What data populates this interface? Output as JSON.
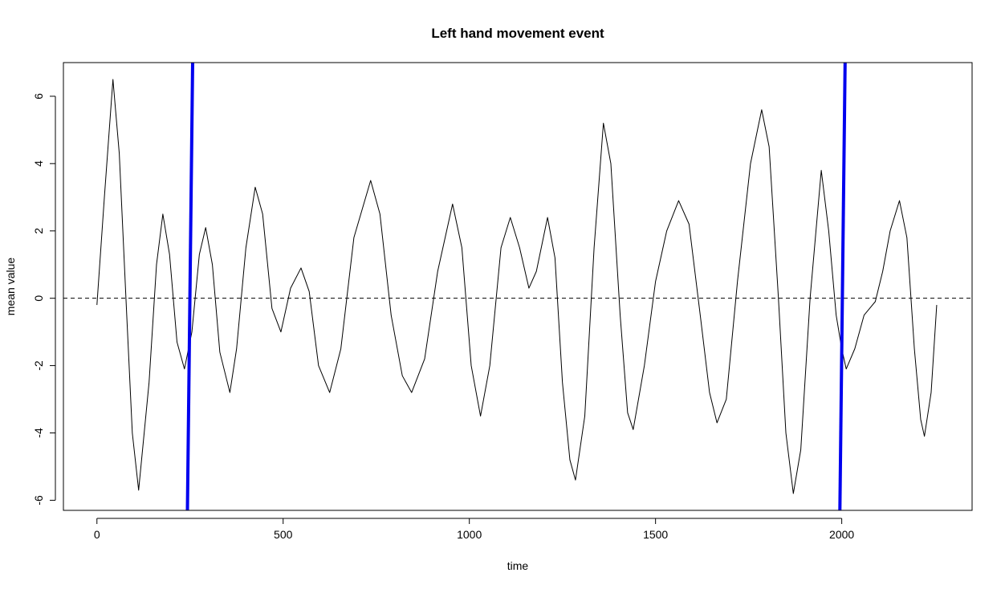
{
  "chart_data": {
    "type": "line",
    "title": "Left hand movement event",
    "xlabel": "time",
    "ylabel": "mean value",
    "xlim": [
      -90,
      2350
    ],
    "ylim": [
      -6.3,
      7.0
    ],
    "x_ticks": [
      0,
      500,
      1000,
      1500,
      2000
    ],
    "x_tick_labels": [
      "0",
      "500",
      "1000",
      "1500",
      "2000"
    ],
    "y_ticks": [
      -6,
      -4,
      -2,
      0,
      2,
      4,
      6
    ],
    "y_tick_labels": [
      "-6",
      "-4",
      "-2",
      "0",
      "2",
      "4",
      "6"
    ],
    "grid": false,
    "legend": "none",
    "series": [
      {
        "color": "#000000",
        "points": [
          [
            0,
            -0.2
          ],
          [
            20,
            3.0
          ],
          [
            43,
            6.5
          ],
          [
            60,
            4.3
          ],
          [
            80,
            -0.5
          ],
          [
            95,
            -4.0
          ],
          [
            112,
            -5.7
          ],
          [
            140,
            -2.5
          ],
          [
            160,
            1.0
          ],
          [
            177,
            2.5
          ],
          [
            195,
            1.3
          ],
          [
            215,
            -1.3
          ],
          [
            235,
            -2.1
          ],
          [
            255,
            -1.0
          ],
          [
            275,
            1.3
          ],
          [
            292,
            2.1
          ],
          [
            310,
            1.0
          ],
          [
            330,
            -1.6
          ],
          [
            357,
            -2.8
          ],
          [
            375,
            -1.5
          ],
          [
            400,
            1.5
          ],
          [
            425,
            3.3
          ],
          [
            445,
            2.5
          ],
          [
            470,
            -0.3
          ],
          [
            494,
            -1.0
          ],
          [
            520,
            0.3
          ],
          [
            548,
            0.9
          ],
          [
            570,
            0.2
          ],
          [
            595,
            -2.0
          ],
          [
            625,
            -2.8
          ],
          [
            655,
            -1.5
          ],
          [
            690,
            1.8
          ],
          [
            735,
            3.5
          ],
          [
            760,
            2.5
          ],
          [
            790,
            -0.5
          ],
          [
            820,
            -2.3
          ],
          [
            845,
            -2.8
          ],
          [
            880,
            -1.8
          ],
          [
            915,
            0.8
          ],
          [
            955,
            2.8
          ],
          [
            980,
            1.5
          ],
          [
            1005,
            -2.0
          ],
          [
            1030,
            -3.5
          ],
          [
            1055,
            -2.0
          ],
          [
            1085,
            1.5
          ],
          [
            1110,
            2.4
          ],
          [
            1135,
            1.5
          ],
          [
            1160,
            0.3
          ],
          [
            1180,
            0.8
          ],
          [
            1210,
            2.4
          ],
          [
            1230,
            1.2
          ],
          [
            1250,
            -2.5
          ],
          [
            1270,
            -4.8
          ],
          [
            1285,
            -5.4
          ],
          [
            1310,
            -3.5
          ],
          [
            1335,
            1.5
          ],
          [
            1360,
            5.2
          ],
          [
            1380,
            4.0
          ],
          [
            1405,
            -0.5
          ],
          [
            1425,
            -3.4
          ],
          [
            1440,
            -3.9
          ],
          [
            1470,
            -2.0
          ],
          [
            1500,
            0.5
          ],
          [
            1530,
            2.0
          ],
          [
            1562,
            2.9
          ],
          [
            1590,
            2.2
          ],
          [
            1620,
            -0.5
          ],
          [
            1645,
            -2.8
          ],
          [
            1665,
            -3.7
          ],
          [
            1690,
            -3.0
          ],
          [
            1720,
            0.5
          ],
          [
            1755,
            4.0
          ],
          [
            1785,
            5.6
          ],
          [
            1805,
            4.5
          ],
          [
            1830,
            0.0
          ],
          [
            1850,
            -4.0
          ],
          [
            1870,
            -5.8
          ],
          [
            1890,
            -4.5
          ],
          [
            1915,
            0.0
          ],
          [
            1945,
            3.8
          ],
          [
            1965,
            2.0
          ],
          [
            1985,
            -0.5
          ],
          [
            2000,
            -1.5
          ],
          [
            2012,
            -2.1
          ],
          [
            2035,
            -1.5
          ],
          [
            2060,
            -0.5
          ],
          [
            2090,
            -0.1
          ],
          [
            2110,
            0.8
          ],
          [
            2130,
            2.0
          ],
          [
            2155,
            2.9
          ],
          [
            2175,
            1.8
          ],
          [
            2195,
            -1.5
          ],
          [
            2212,
            -3.6
          ],
          [
            2222,
            -4.1
          ],
          [
            2240,
            -2.8
          ],
          [
            2255,
            -0.2
          ]
        ]
      },
      {
        "color": "#000000",
        "style": "dashed",
        "points": [
          [
            -90,
            0
          ],
          [
            2350,
            0
          ]
        ]
      }
    ],
    "vlines": [
      {
        "x0": 243,
        "x1": 257,
        "color": "#0000ee"
      },
      {
        "x0": 1995,
        "x1": 2009,
        "color": "#0000ee"
      }
    ]
  }
}
